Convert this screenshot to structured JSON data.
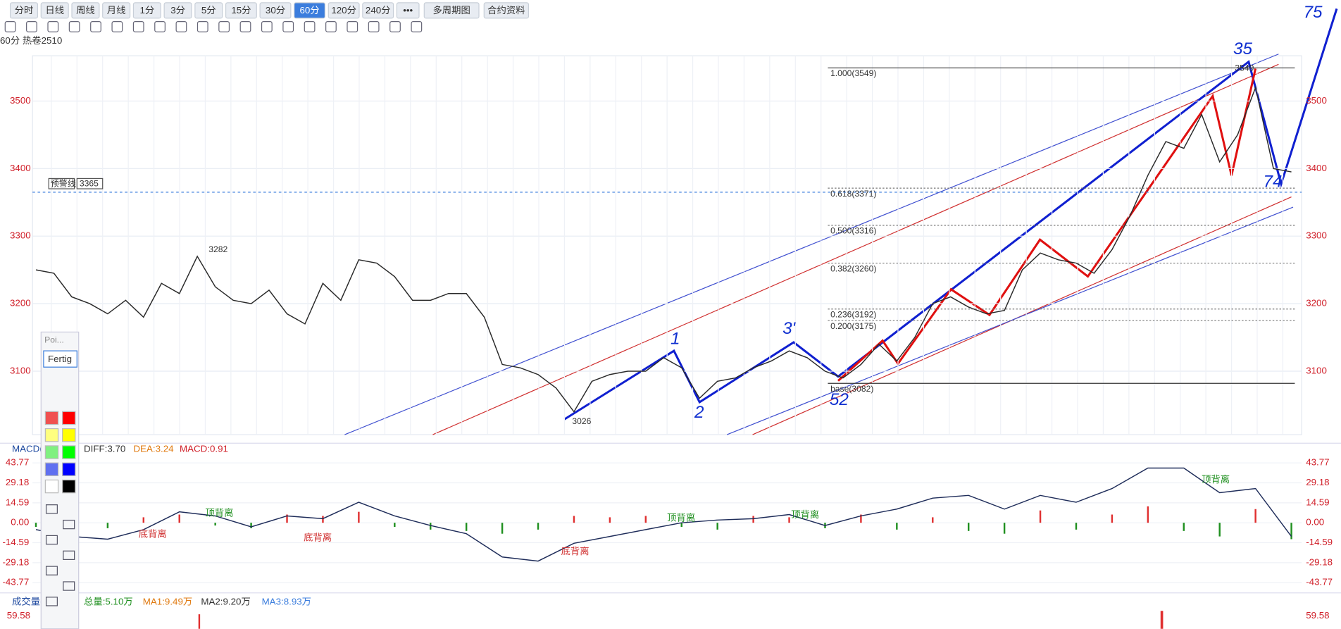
{
  "toolbar": {
    "periods": [
      "分时",
      "日线",
      "周线",
      "月线",
      "1分",
      "3分",
      "5分",
      "15分",
      "30分",
      "60分",
      "120分",
      "240分"
    ],
    "active_index": 9,
    "more": "•••",
    "multi": "多周期图",
    "contract": "合约资料"
  },
  "symbol_label": "60分 热卷2510",
  "chart_data": {
    "type": "line",
    "series": [
      {
        "color": "#2a2a2a",
        "values": [
          3250,
          3245,
          3210,
          3200,
          3185,
          3205,
          3180,
          3230,
          3215,
          3270,
          3225,
          3205,
          3200,
          3220,
          3185,
          3170,
          3230,
          3205,
          3265,
          3260,
          3240,
          3205,
          3205,
          3215,
          3215,
          3180,
          3110,
          3105,
          3095,
          3075,
          3040,
          3085,
          3095,
          3100,
          3100,
          3120,
          3105,
          3060,
          3085,
          3090,
          3105,
          3115,
          3130,
          3120,
          3100,
          3090,
          3110,
          3140,
          3115,
          3150,
          3200,
          3210,
          3195,
          3185,
          3190,
          3250,
          3275,
          3265,
          3260,
          3245,
          3280,
          3330,
          3390,
          3440,
          3430,
          3480,
          3410,
          3450,
          3520,
          3400,
          3395
        ]
      }
    ],
    "ylim": [
      3006,
      3567
    ],
    "yticks": [
      3100,
      3200,
      3300,
      3400,
      3500
    ],
    "grid": true
  },
  "price_annotations": [
    "3282",
    "3026",
    "3549"
  ],
  "alert": {
    "label": "预警线",
    "value": 3365
  },
  "fibonacci": [
    {
      "label": "1.000(3549)",
      "price": 3549
    },
    {
      "label": "0.618(3371)",
      "price": 3371
    },
    {
      "label": "0.500(3316)",
      "price": 3316
    },
    {
      "label": "0.382(3260)",
      "price": 3260
    },
    {
      "label": "0.236(3192)",
      "price": 3192
    },
    {
      "label": "0.200(3175)",
      "price": 3175
    },
    {
      "label": "base(3082)",
      "price": 3082
    }
  ],
  "handwritten": [
    "1",
    "2",
    "3'",
    "52",
    "35",
    "74",
    "75"
  ],
  "macd": {
    "title": "MACD(",
    "diff": "DIFF:3.70",
    "dea": "DEA:3.24",
    "macd": "MACD:0.91",
    "ylim": [
      -49.4,
      56.9
    ],
    "yticks": [
      43.77,
      29.18,
      14.59,
      {
        "value": 0,
        "label": "0.00"
      },
      -14.59,
      -29.18,
      -43.77
    ],
    "diff_values": [
      -5,
      -10,
      -12,
      -5,
      8,
      5,
      -3,
      5,
      3,
      15,
      5,
      -2,
      -8,
      -25,
      -28,
      -15,
      -10,
      -5,
      0,
      2,
      3,
      6,
      -2,
      5,
      10,
      18,
      20,
      10,
      20,
      15,
      25,
      40,
      40,
      22,
      25,
      -10
    ],
    "hist": [
      -3,
      -5,
      -4,
      4,
      6,
      -2,
      -4,
      6,
      5,
      8,
      -3,
      -5,
      -6,
      -8,
      -5,
      5,
      4,
      5,
      -3,
      -5,
      5,
      4,
      -4,
      6,
      -5,
      4,
      -6,
      -8,
      9,
      -5,
      6,
      12,
      -6,
      -10,
      10,
      -12
    ],
    "annotations": [
      "底背离",
      "顶背离",
      "底背离",
      "底背离",
      "顶背离",
      "顶背离",
      "顶背离"
    ]
  },
  "volume": {
    "title": "成交量(",
    "total": "总量:5.10万",
    "ma1": "MA1:9.49万",
    "ma2": "MA2:9.20万",
    "ma3": "MA3:8.93万",
    "ytick_label": "59.58"
  },
  "toolbox": {
    "title": "Poi...",
    "done": "Fertig"
  }
}
